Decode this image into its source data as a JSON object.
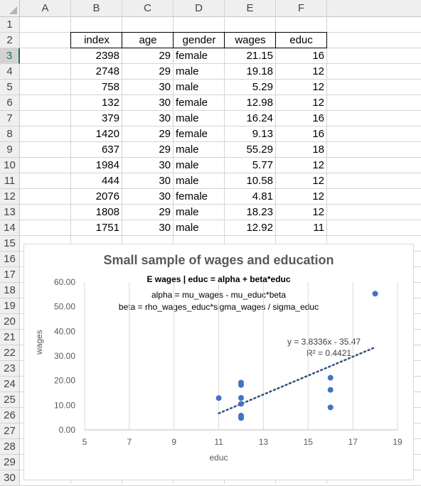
{
  "columns": [
    "A",
    "B",
    "C",
    "D",
    "E",
    "F"
  ],
  "rows": [
    "1",
    "2",
    "3",
    "4",
    "5",
    "6",
    "7",
    "8",
    "9",
    "10",
    "11",
    "12",
    "13",
    "14",
    "15",
    "16",
    "17",
    "18",
    "19",
    "20",
    "21",
    "22",
    "23",
    "24",
    "25",
    "26",
    "27",
    "28",
    "29",
    "30"
  ],
  "table": {
    "headers": [
      "index",
      "age",
      "gender",
      "wages",
      "educ"
    ],
    "rows": [
      [
        "2398",
        "29",
        "female",
        "21.15",
        "16"
      ],
      [
        "2748",
        "29",
        "male",
        "19.18",
        "12"
      ],
      [
        "758",
        "30",
        "male",
        "5.29",
        "12"
      ],
      [
        "132",
        "30",
        "female",
        "12.98",
        "12"
      ],
      [
        "379",
        "30",
        "male",
        "16.24",
        "16"
      ],
      [
        "1420",
        "29",
        "female",
        "9.13",
        "16"
      ],
      [
        "637",
        "29",
        "male",
        "55.29",
        "18"
      ],
      [
        "1984",
        "30",
        "male",
        "5.77",
        "12"
      ],
      [
        "444",
        "30",
        "male",
        "10.58",
        "12"
      ],
      [
        "2076",
        "30",
        "female",
        "4.81",
        "12"
      ],
      [
        "1808",
        "29",
        "male",
        "18.23",
        "12"
      ],
      [
        "1751",
        "30",
        "male",
        "12.92",
        "11"
      ]
    ]
  },
  "selected_row": "3",
  "colors": {
    "header_bg": "#efefef",
    "selected_accent": "#217346",
    "marker": "#4472c4",
    "trend": "#2f4f7f"
  },
  "chart_data": {
    "type": "scatter",
    "title": "Small sample of wages and education",
    "subtitle": "E wages | educ = alpha + beta*educ",
    "annotations": [
      "alpha = mu_wages - mu_educ*beta",
      "beta = rho_wages_educ*sigma_wages / sigma_educ"
    ],
    "trendline_equation": "y = 3.8336x - 35.47",
    "r_squared": "R² = 0.4421",
    "trendline": {
      "slope": 3.8336,
      "intercept": -35.47,
      "x_from": 11,
      "x_to": 18
    },
    "xlabel": "educ",
    "ylabel": "wages",
    "xlim": [
      5,
      19
    ],
    "ylim": [
      0,
      60
    ],
    "xticks": [
      "5",
      "7",
      "9",
      "11",
      "13",
      "15",
      "17",
      "19"
    ],
    "xtick_values": [
      5,
      7,
      9,
      11,
      13,
      15,
      17,
      19
    ],
    "yticks": [
      "0.00",
      "10.00",
      "20.00",
      "30.00",
      "40.00",
      "50.00",
      "60.00"
    ],
    "ytick_values": [
      0,
      10,
      20,
      30,
      40,
      50,
      60
    ],
    "grid": "vertical",
    "points": [
      [
        16,
        21.15
      ],
      [
        12,
        19.18
      ],
      [
        12,
        5.29
      ],
      [
        12,
        12.98
      ],
      [
        16,
        16.24
      ],
      [
        16,
        9.13
      ],
      [
        18,
        55.29
      ],
      [
        12,
        5.77
      ],
      [
        12,
        10.58
      ],
      [
        12,
        4.81
      ],
      [
        12,
        18.23
      ],
      [
        11,
        12.92
      ]
    ]
  }
}
